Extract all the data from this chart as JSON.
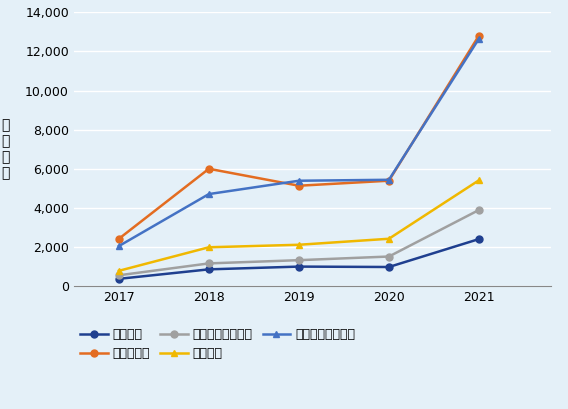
{
  "years": [
    2017,
    2018,
    2019,
    2020,
    2021
  ],
  "series": {
    "アラバマ": [
      381,
      866,
      1007,
      986,
      2413
    ],
    "ジョージア": [
      2427,
      6004,
      5138,
      5395,
      12810
    ],
    "サウスカロライナ": [
      562,
      1170,
      1335,
      1521,
      3899
    ],
    "テネシー": [
      791,
      1994,
      2122,
      2429,
      5417
    ],
    "ノースカロライナ": [
      2055,
      4712,
      5393,
      5442,
      12652
    ]
  },
  "colors": {
    "アラバマ": "#1f3f8f",
    "ジョージア": "#e36c21",
    "サウスカロライナ": "#a0a0a0",
    "テネシー": "#f0b800",
    "ノースカロライナ": "#4472c4"
  },
  "markers": {
    "アラバマ": "o",
    "ジョージア": "o",
    "サウスカロライナ": "o",
    "テネシー": "^",
    "ノースカロライナ": "^"
  },
  "ylabel": "販\n売\n台\n数",
  "ylim": [
    0,
    14000
  ],
  "yticks": [
    0,
    2000,
    4000,
    6000,
    8000,
    10000,
    12000,
    14000
  ],
  "background_color": "#e4f0f8",
  "grid_color": "#ffffff",
  "axis_fontsize": 9,
  "legend_fontsize": 9,
  "linewidth": 1.8,
  "markersize": 5,
  "legend_order": [
    "アラバマ",
    "ジョージア",
    "サウスカロライナ",
    "テネシー",
    "ノースカロライナ"
  ]
}
